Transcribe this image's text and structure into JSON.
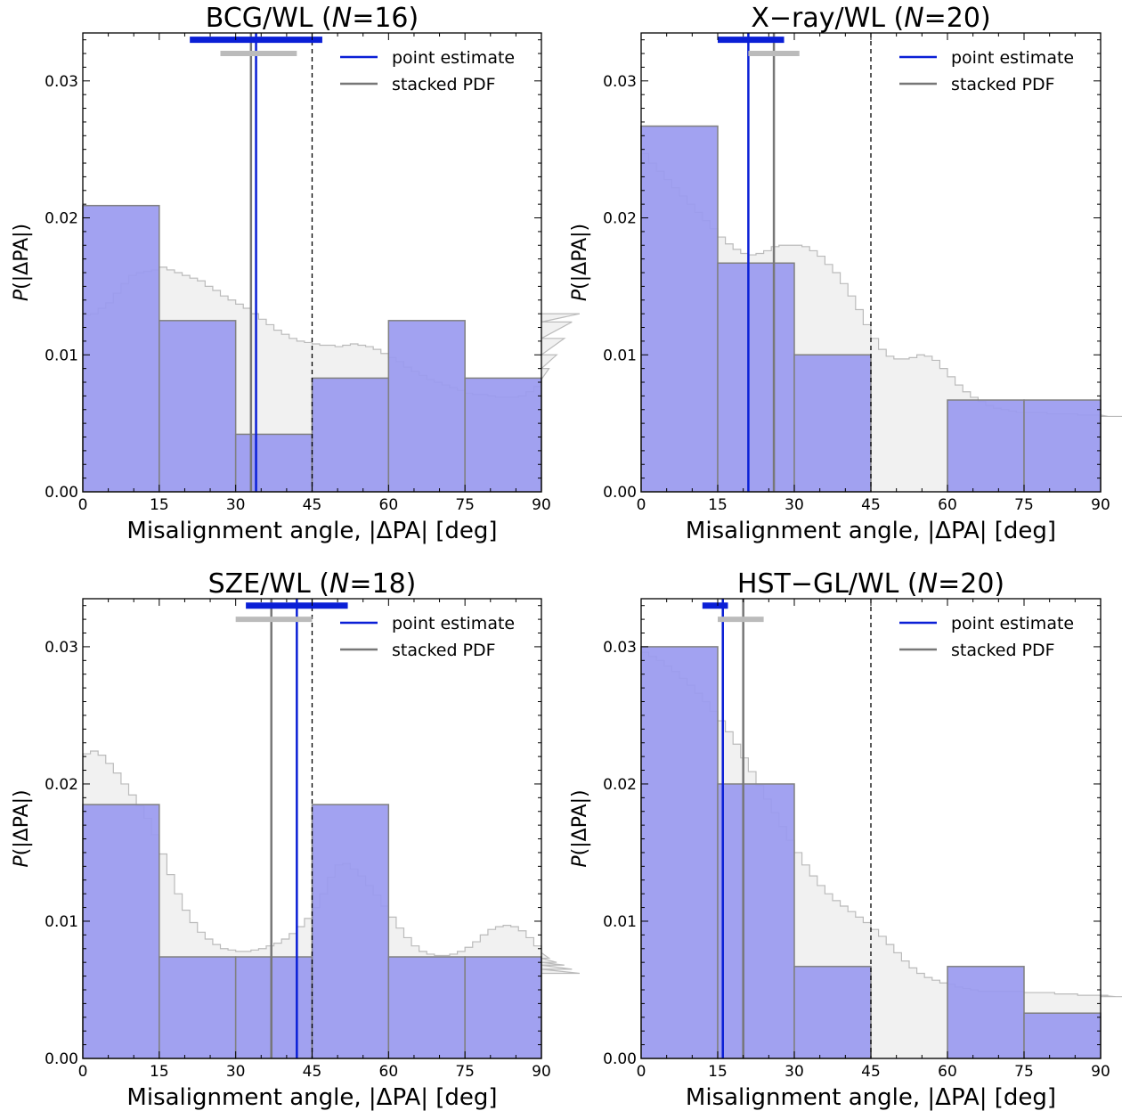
{
  "chart_data": [
    {
      "type": "bar",
      "title": "BCG/WL (N=16)",
      "title_main": "BCG/WL (",
      "title_var": "N",
      "title_rest": "=16)",
      "xlabel": "Misalignment angle, |ΔPA| [deg]",
      "ylabel_var": "P",
      "ylabel_rest": "(|ΔPA|)",
      "xlim": [
        0,
        90
      ],
      "ylim": [
        0,
        0.0335
      ],
      "xticks": [
        0,
        15,
        30,
        45,
        60,
        75,
        90
      ],
      "yticks": [
        0.0,
        0.01,
        0.02,
        0.03
      ],
      "ytick_labels": [
        "0.00",
        "0.01",
        "0.02",
        "0.03"
      ],
      "histogram": {
        "bin_edges": [
          0,
          15,
          30,
          45,
          60,
          75,
          90
        ],
        "values": [
          0.0209,
          0.0125,
          0.0042,
          0.0083,
          0.0125,
          0.0083
        ]
      },
      "stacked_pdf": {
        "step": 1.5,
        "values": [
          0.0129,
          0.013,
          0.0134,
          0.0138,
          0.0145,
          0.0152,
          0.0158,
          0.016,
          0.0161,
          0.0162,
          0.0164,
          0.0162,
          0.016,
          0.0158,
          0.0156,
          0.0154,
          0.015,
          0.0147,
          0.0143,
          0.014,
          0.0137,
          0.0134,
          0.013,
          0.0126,
          0.0122,
          0.0118,
          0.0115,
          0.0112,
          0.011,
          0.0109,
          0.0108,
          0.0107,
          0.0107,
          0.0106,
          0.0107,
          0.0108,
          0.0107,
          0.0106,
          0.0104,
          0.0101,
          0.0098,
          0.0095,
          0.0091,
          0.0088,
          0.0085,
          0.0082,
          0.008,
          0.0078,
          0.0076,
          0.0074,
          0.0072,
          0.0071,
          0.0071,
          0.007,
          0.0069,
          0.0069,
          0.0069,
          0.007,
          0.0073,
          0.0077,
          0.0082,
          0.009,
          0.01,
          0.0112,
          0.0124,
          0.013
        ]
      },
      "point_estimate": 34,
      "point_interval": [
        21,
        47
      ],
      "stacked_estimate": 33,
      "stacked_interval": [
        27,
        42
      ],
      "reference_line": 45,
      "legend": [
        "point estimate",
        "stacked PDF"
      ],
      "legend_position": "top-right"
    },
    {
      "type": "bar",
      "title": "X−ray/WL (N=20)",
      "title_main": "X−ray/WL (",
      "title_var": "N",
      "title_rest": "=20)",
      "xlabel": "Misalignment angle, |ΔPA| [deg]",
      "ylabel_var": "P",
      "ylabel_rest": "(|ΔPA|)",
      "xlim": [
        0,
        90
      ],
      "ylim": [
        0,
        0.0335
      ],
      "xticks": [
        0,
        15,
        30,
        45,
        60,
        75,
        90
      ],
      "yticks": [
        0.0,
        0.01,
        0.02,
        0.03
      ],
      "ytick_labels": [
        "0.00",
        "0.01",
        "0.02",
        "0.03"
      ],
      "histogram": {
        "bin_edges": [
          0,
          15,
          30,
          45,
          60,
          75,
          90
        ],
        "values": [
          0.0267,
          0.0167,
          0.01,
          0.0,
          0.0067,
          0.0067
        ]
      },
      "stacked_pdf": {
        "step": 1.5,
        "values": [
          0.0247,
          0.024,
          0.0234,
          0.0228,
          0.0222,
          0.0216,
          0.021,
          0.0204,
          0.0198,
          0.0192,
          0.0186,
          0.0181,
          0.0177,
          0.0174,
          0.0173,
          0.0174,
          0.0176,
          0.0179,
          0.018,
          0.018,
          0.018,
          0.0179,
          0.0176,
          0.0172,
          0.0166,
          0.016,
          0.0152,
          0.0143,
          0.0133,
          0.0122,
          0.0112,
          0.0104,
          0.0099,
          0.0097,
          0.0097,
          0.0098,
          0.01,
          0.0099,
          0.0096,
          0.009,
          0.0084,
          0.0078,
          0.0073,
          0.0069,
          0.0066,
          0.0063,
          0.0061,
          0.006,
          0.0059,
          0.0058,
          0.0058,
          0.0058,
          0.0058,
          0.0057,
          0.0057,
          0.0057,
          0.0057,
          0.0056,
          0.0056,
          0.0056,
          0.0056,
          0.0055,
          0.0055,
          0.0055,
          0.0055,
          0.0055
        ]
      },
      "point_estimate": 21,
      "point_interval": [
        15,
        28
      ],
      "stacked_estimate": 26,
      "stacked_interval": [
        21,
        31
      ],
      "reference_line": 45,
      "legend": [
        "point estimate",
        "stacked PDF"
      ],
      "legend_position": "top-right"
    },
    {
      "type": "bar",
      "title": "SZE/WL (N=18)",
      "title_main": "SZE/WL (",
      "title_var": "N",
      "title_rest": "=18)",
      "xlabel": "Misalignment angle, |ΔPA| [deg]",
      "ylabel_var": "P",
      "ylabel_rest": "(|ΔPA|)",
      "xlim": [
        0,
        90
      ],
      "ylim": [
        0,
        0.0335
      ],
      "xticks": [
        0,
        15,
        30,
        45,
        60,
        75,
        90
      ],
      "yticks": [
        0.0,
        0.01,
        0.02,
        0.03
      ],
      "ytick_labels": [
        "0.00",
        "0.01",
        "0.02",
        "0.03"
      ],
      "histogram": {
        "bin_edges": [
          0,
          15,
          30,
          45,
          60,
          75,
          90
        ],
        "values": [
          0.0185,
          0.0074,
          0.0074,
          0.0185,
          0.0074,
          0.0074
        ]
      },
      "stacked_pdf": {
        "step": 1.5,
        "values": [
          0.0222,
          0.0224,
          0.0221,
          0.0215,
          0.0208,
          0.02,
          0.0192,
          0.0184,
          0.0175,
          0.0163,
          0.0149,
          0.0134,
          0.012,
          0.0108,
          0.0099,
          0.0092,
          0.0087,
          0.0083,
          0.008,
          0.0079,
          0.0078,
          0.0078,
          0.0079,
          0.008,
          0.0082,
          0.0084,
          0.0087,
          0.0091,
          0.0096,
          0.0102,
          0.011,
          0.012,
          0.0132,
          0.0141,
          0.0142,
          0.0138,
          0.0133,
          0.0126,
          0.0119,
          0.0111,
          0.0103,
          0.0095,
          0.0088,
          0.0082,
          0.0078,
          0.0076,
          0.0075,
          0.0075,
          0.0076,
          0.0078,
          0.0081,
          0.0085,
          0.009,
          0.0094,
          0.0096,
          0.0097,
          0.0096,
          0.0093,
          0.0088,
          0.0082,
          0.0077,
          0.0073,
          0.007,
          0.0068,
          0.0065,
          0.0062
        ]
      },
      "point_estimate": 42,
      "point_interval": [
        32,
        52
      ],
      "stacked_estimate": 37,
      "stacked_interval": [
        30,
        45
      ],
      "reference_line": 45,
      "legend": [
        "point estimate",
        "stacked PDF"
      ],
      "legend_position": "top-right"
    },
    {
      "type": "bar",
      "title": "HST−GL/WL (N=20)",
      "title_main": "HST−GL/WL (",
      "title_var": "N",
      "title_rest": "=20)",
      "xlabel": "Misalignment angle, |ΔPA| [deg]",
      "ylabel_var": "P",
      "ylabel_rest": "(|ΔPA|)",
      "xlim": [
        0,
        90
      ],
      "ylim": [
        0,
        0.0335
      ],
      "xticks": [
        0,
        15,
        30,
        45,
        60,
        75,
        90
      ],
      "yticks": [
        0.0,
        0.01,
        0.02,
        0.03
      ],
      "ytick_labels": [
        "0.00",
        "0.01",
        "0.02",
        "0.03"
      ],
      "histogram": {
        "bin_edges": [
          0,
          15,
          30,
          45,
          60,
          75,
          90
        ],
        "values": [
          0.03,
          0.02,
          0.0067,
          0.0,
          0.0067,
          0.0033
        ]
      },
      "stacked_pdf": {
        "step": 1.5,
        "values": [
          0.0296,
          0.0293,
          0.029,
          0.0286,
          0.0282,
          0.0277,
          0.0272,
          0.0266,
          0.026,
          0.0253,
          0.0246,
          0.0238,
          0.0229,
          0.0219,
          0.0209,
          0.0199,
          0.0189,
          0.0179,
          0.0169,
          0.0159,
          0.015,
          0.0141,
          0.0133,
          0.0126,
          0.012,
          0.0115,
          0.0111,
          0.0107,
          0.0103,
          0.0099,
          0.0094,
          0.0089,
          0.0083,
          0.0077,
          0.0071,
          0.0066,
          0.0062,
          0.0059,
          0.0057,
          0.0055,
          0.0054,
          0.0052,
          0.0051,
          0.005,
          0.0049,
          0.0049,
          0.0049,
          0.0049,
          0.0049,
          0.0049,
          0.0048,
          0.0048,
          0.0048,
          0.0048,
          0.0047,
          0.0047,
          0.0047,
          0.0046,
          0.0046,
          0.0046,
          0.0046,
          0.0046,
          0.0045,
          0.0045,
          0.0045,
          0.0045
        ]
      },
      "point_estimate": 16,
      "point_interval": [
        12,
        17
      ],
      "stacked_estimate": 20,
      "stacked_interval": [
        15,
        24
      ],
      "reference_line": 45,
      "legend": [
        "point estimate",
        "stacked PDF"
      ],
      "legend_position": "top-right"
    }
  ],
  "colors": {
    "histogram_fill": "#9a9af0",
    "histogram_edge": "#808080",
    "stacked_pdf_fill": "#f1f1f1",
    "stacked_pdf_edge": "#bbbbbb",
    "point_estimate": "#0a1fd6",
    "stacked_pdf_line": "#777777",
    "stacked_interval_bar": "#bbbbbb",
    "reference_line": "#000000"
  }
}
